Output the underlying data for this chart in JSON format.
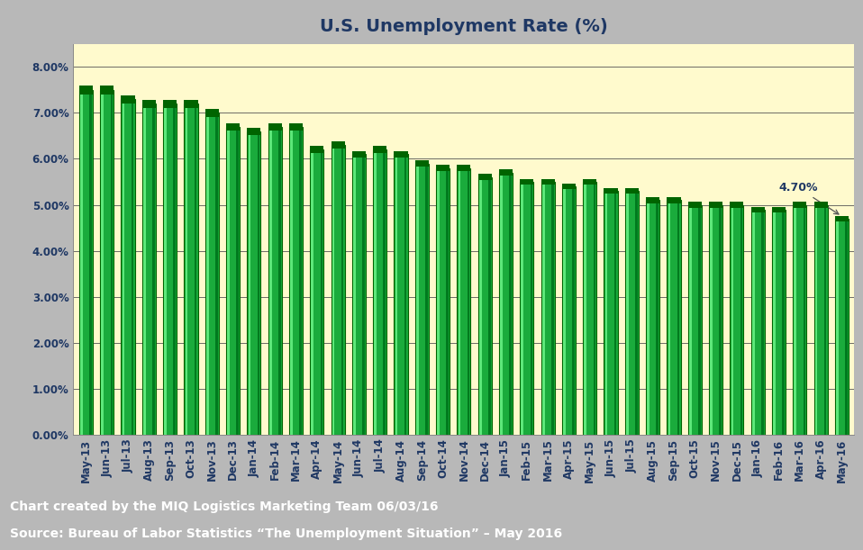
{
  "title": "U.S. Unemployment Rate (%)",
  "categories": [
    "May-13",
    "Jun-13",
    "Jul-13",
    "Aug-13",
    "Sep-13",
    "Oct-13",
    "Nov-13",
    "Dec-13",
    "Jan-14",
    "Feb-14",
    "Mar-14",
    "Apr-14",
    "May-14",
    "Jun-14",
    "Jul-14",
    "Aug-14",
    "Sep-14",
    "Oct-14",
    "Nov-14",
    "Dec-14",
    "Jan-15",
    "Feb-15",
    "Mar-15",
    "Apr-15",
    "May-15",
    "Jun-15",
    "Jul-15",
    "Aug-15",
    "Sep-15",
    "Oct-15",
    "Nov-15",
    "Dec-15",
    "Jan-16",
    "Feb-16",
    "Mar-16",
    "Apr-16",
    "May-16"
  ],
  "values": [
    7.5,
    7.5,
    7.3,
    7.2,
    7.2,
    7.2,
    7.0,
    6.7,
    6.6,
    6.7,
    6.7,
    6.2,
    6.3,
    6.1,
    6.2,
    6.1,
    5.9,
    5.8,
    5.8,
    5.6,
    5.7,
    5.5,
    5.5,
    5.4,
    5.5,
    5.3,
    5.3,
    5.1,
    5.1,
    5.0,
    5.0,
    5.0,
    4.9,
    4.9,
    5.0,
    5.0,
    4.7
  ],
  "bar_face_color": "#1aab3c",
  "bar_edge_color": "#006400",
  "bar_highlight_color": "#5de87a",
  "bar_shadow_color": "#007a1e",
  "plot_bg_color": "#FFFACD",
  "outer_bg_color": "#B8B8B8",
  "footer_bg_color": "#1F3864",
  "footer_text_color": "#FFFFFF",
  "title_color": "#1F3864",
  "axis_label_color": "#1F3864",
  "grid_color": "#555555",
  "annotation_text": "4.70%",
  "annotation_color": "#1F3864",
  "ylim": [
    0.0,
    8.5
  ],
  "yticks": [
    0.0,
    1.0,
    2.0,
    3.0,
    4.0,
    5.0,
    6.0,
    7.0,
    8.0
  ],
  "ytick_labels": [
    "0.00%",
    "1.00%",
    "2.00%",
    "3.00%",
    "4.00%",
    "5.00%",
    "6.00%",
    "7.00%",
    "8.00%"
  ],
  "footer_line1": "Chart created by the MIQ Logistics Marketing Team 06/03/16",
  "footer_line2": "Source: Bureau of Labor Statistics “The Unemployment Situation” – May 2016",
  "title_fontsize": 14,
  "tick_fontsize": 8.5,
  "footer_fontsize": 10
}
